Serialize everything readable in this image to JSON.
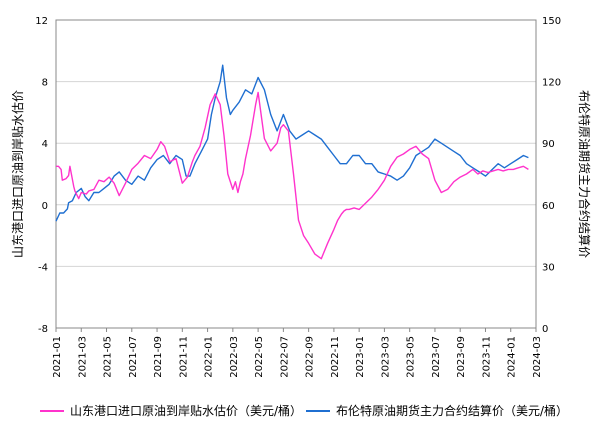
{
  "chart_data": {
    "type": "line",
    "title": "",
    "xlabel": "",
    "ylabel_left": "山东港口进口原油到岸贴水估价",
    "ylabel_right": "布伦特原油期货主力合约结算价",
    "ylim_left": [
      -8,
      12
    ],
    "ylim_right": [
      0,
      150
    ],
    "yticks_left": [
      "12",
      "8",
      "4",
      "0",
      "-4",
      "-8"
    ],
    "yticks_right": [
      "150",
      "120",
      "90",
      "60",
      "30",
      "0"
    ],
    "xticks": [
      "2021-01",
      "2021-03",
      "2021-05",
      "2021-07",
      "2021-09",
      "2021-11",
      "2022-01",
      "2022-03",
      "2022-05",
      "2022-07",
      "2022-09",
      "2022-11",
      "2023-01",
      "2023-03",
      "2023-05",
      "2023-07",
      "2023-09",
      "2023-11",
      "2024-01",
      "2024-03"
    ],
    "grid": "horizontal",
    "legend_position": "bottom",
    "x_unit": "month index from 2021-01",
    "series": [
      {
        "name": "山东港口进口原油到岸贴水估价（美元/桶）",
        "axis": "left",
        "color": "#ff33cc",
        "x": [
          0,
          0.2,
          0.4,
          0.5,
          0.8,
          1.0,
          1.1,
          1.4,
          1.5,
          1.8,
          2.0,
          2.4,
          2.6,
          3.0,
          3.4,
          3.8,
          4.2,
          4.6,
          5.0,
          5.5,
          6.0,
          6.5,
          7.0,
          7.5,
          8.0,
          8.3,
          8.6,
          9.0,
          9.5,
          10.0,
          10.4,
          10.8,
          11.0,
          11.4,
          11.8,
          12.2,
          12.6,
          13.0,
          13.3,
          13.6,
          14.0,
          14.2,
          14.4,
          14.6,
          14.8,
          15.0,
          15.4,
          15.8,
          16.0,
          16.5,
          17.0,
          17.5,
          17.8,
          18.0,
          18.4,
          18.8,
          19.2,
          19.6,
          20.0,
          20.5,
          21.0,
          21.5,
          22.0,
          22.3,
          22.6,
          22.8,
          23.0,
          23.2,
          23.6,
          24.0,
          24.5,
          25.0,
          25.5,
          26.0,
          26.5,
          27.0,
          27.5,
          28.0,
          28.5,
          29.0,
          29.5,
          30.0,
          30.5,
          31.0,
          31.5,
          32.0,
          32.5,
          33.0,
          33.4,
          33.8,
          34.2,
          34.6,
          35.0,
          35.4,
          35.8,
          36.2,
          36.6,
          37.0,
          37.4
        ],
        "values": [
          2.5,
          2.5,
          2.3,
          1.6,
          1.7,
          1.9,
          2.5,
          1.2,
          0.9,
          0.4,
          0.8,
          0.7,
          0.9,
          1.0,
          1.6,
          1.5,
          1.8,
          1.4,
          0.6,
          1.4,
          2.3,
          2.7,
          3.2,
          3.0,
          3.6,
          4.1,
          3.8,
          2.8,
          3.0,
          1.4,
          1.8,
          2.8,
          3.2,
          3.8,
          5.0,
          6.5,
          7.2,
          6.5,
          4.5,
          2.0,
          1.0,
          1.5,
          0.8,
          1.5,
          2.0,
          3.0,
          4.5,
          6.5,
          7.3,
          4.3,
          3.5,
          4.0,
          5.0,
          5.2,
          4.8,
          2.0,
          -1.0,
          -2.0,
          -2.5,
          -3.2,
          -3.5,
          -2.5,
          -1.6,
          -1.0,
          -0.6,
          -0.4,
          -0.3,
          -0.3,
          -0.2,
          -0.3,
          0.1,
          0.5,
          1.0,
          1.6,
          2.5,
          3.1,
          3.3,
          3.6,
          3.8,
          3.3,
          3.0,
          1.6,
          0.8,
          1.0,
          1.5,
          1.8,
          2.0,
          2.3,
          2.0,
          2.2,
          2.1,
          2.2,
          2.3,
          2.2,
          2.3,
          2.3,
          2.4,
          2.5,
          2.3
        ]
      },
      {
        "name": "布伦特原油期货主力合约结算价（美元/桶）",
        "axis": "right",
        "color": "#1f6fd1",
        "x": [
          0,
          0.3,
          0.6,
          0.9,
          1.0,
          1.3,
          1.6,
          2.0,
          2.3,
          2.6,
          3.0,
          3.4,
          3.8,
          4.2,
          4.6,
          5.0,
          5.5,
          6.0,
          6.5,
          7.0,
          7.5,
          8.0,
          8.5,
          9.0,
          9.5,
          10.0,
          10.3,
          10.6,
          11.0,
          11.5,
          12.0,
          12.3,
          12.6,
          13.0,
          13.2,
          13.5,
          13.8,
          14.0,
          14.5,
          15.0,
          15.5,
          16.0,
          16.5,
          17.0,
          17.5,
          18.0,
          18.5,
          19.0,
          19.5,
          20.0,
          20.5,
          21.0,
          21.5,
          22.0,
          22.5,
          23.0,
          23.5,
          24.0,
          24.5,
          25.0,
          25.5,
          26.0,
          26.5,
          27.0,
          27.5,
          28.0,
          28.5,
          29.0,
          29.5,
          30.0,
          30.5,
          31.0,
          31.5,
          32.0,
          32.5,
          33.0,
          33.5,
          34.0,
          34.5,
          35.0,
          35.5,
          36.0,
          36.5,
          37.0,
          37.4
        ],
        "values": [
          52,
          56,
          56,
          58,
          61,
          62,
          66,
          68,
          64,
          62,
          66,
          66,
          68,
          70,
          74,
          76,
          72,
          70,
          74,
          72,
          78,
          82,
          84,
          80,
          84,
          82,
          74,
          74,
          80,
          86,
          92,
          104,
          112,
          120,
          128,
          112,
          104,
          106,
          110,
          116,
          114,
          122,
          116,
          104,
          96,
          104,
          96,
          92,
          94,
          96,
          94,
          92,
          88,
          84,
          80,
          80,
          84,
          84,
          80,
          80,
          76,
          75,
          74,
          72,
          74,
          78,
          84,
          86,
          88,
          92,
          90,
          88,
          86,
          84,
          80,
          78,
          76,
          74,
          77,
          80,
          78,
          80,
          82,
          84,
          83
        ]
      }
    ]
  }
}
